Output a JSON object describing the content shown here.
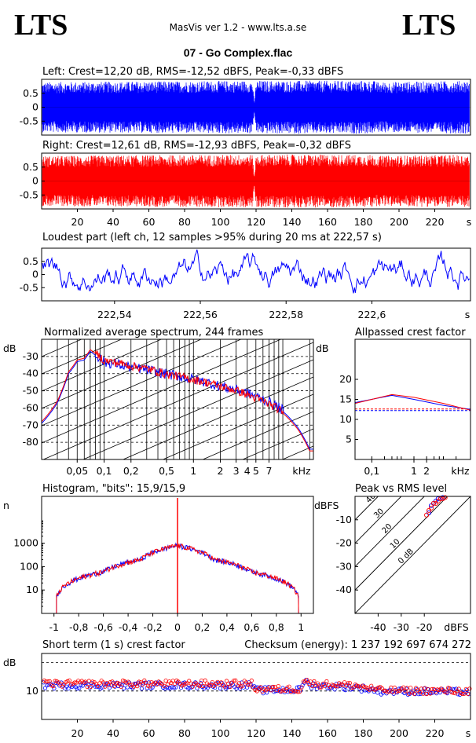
{
  "header": {
    "logo_left": "LTS",
    "logo_right": "LTS",
    "app_title": "MasVis ver 1.2 - www.lts.a.se",
    "file_name": "07 - Go Complex.flac"
  },
  "colors": {
    "left": "#0000ff",
    "right": "#ff0000",
    "axis": "#000000"
  },
  "chart_data": [
    {
      "id": "left-waveform",
      "type": "area",
      "title": "Left: Crest=12,20 dB, RMS=-12,52 dBFS, Peak=-0,33 dBFS",
      "series": [
        {
          "color": "#0000ff",
          "envelope": [
            [
              0,
              0.9
            ],
            [
              118,
              0.95
            ],
            [
              119,
              0.15
            ],
            [
              120,
              0.95
            ],
            [
              186,
              0.95
            ],
            [
              187,
              0.9
            ],
            [
              240,
              0.95
            ]
          ]
        }
      ],
      "xlim": [
        0,
        240
      ],
      "ylim": [
        -1,
        1
      ],
      "yticks": [
        "0.5",
        "0",
        "-0.5"
      ],
      "ytick_values": [
        0.5,
        0,
        -0.5
      ],
      "xticks": [],
      "xlabel": ""
    },
    {
      "id": "right-waveform",
      "type": "area",
      "title": "Right: Crest=12,61 dB, RMS=-12,93 dBFS, Peak=-0,32 dBFS",
      "series": [
        {
          "color": "#ff0000",
          "envelope": [
            [
              0,
              0.9
            ],
            [
              118,
              0.95
            ],
            [
              119,
              0.15
            ],
            [
              120,
              0.95
            ],
            [
              186,
              0.95
            ],
            [
              187,
              0.9
            ],
            [
              240,
              0.95
            ]
          ]
        }
      ],
      "xlim": [
        0,
        240
      ],
      "ylim": [
        -1,
        1
      ],
      "yticks": [
        "0.5",
        "0",
        "-0.5"
      ],
      "ytick_values": [
        0.5,
        0,
        -0.5
      ],
      "xticks": [
        "20",
        "40",
        "60",
        "80",
        "100",
        "120",
        "140",
        "160",
        "180",
        "200",
        "220"
      ],
      "xtick_values": [
        20,
        40,
        60,
        80,
        100,
        120,
        140,
        160,
        180,
        200,
        220
      ],
      "xlabel": "s"
    },
    {
      "id": "loudest-part",
      "type": "line",
      "title": "Loudest part (left  ch, 12 samples >95% during 20 ms at 222,57 s)",
      "series": [
        {
          "color": "#0000ff"
        }
      ],
      "xlim": [
        222.523,
        222.623
      ],
      "ylim": [
        -1,
        1
      ],
      "yticks": [
        "0.5",
        "0",
        "-0.5"
      ],
      "ytick_values": [
        0.5,
        0,
        -0.5
      ],
      "xticks": [
        "222,54",
        "222,56",
        "222,58",
        "222,6"
      ],
      "xtick_values": [
        222.54,
        222.56,
        222.58,
        222.6
      ],
      "xlabel": "s"
    },
    {
      "id": "average-spectrum",
      "type": "line",
      "title": "Normalized average spectrum, 244 frames",
      "ylabel": "dB",
      "xlabel": "kHz",
      "xlim": [
        0.02,
        22
      ],
      "ylim": [
        -90,
        -20
      ],
      "yticks": [
        "-30",
        "-40",
        "-50",
        "-60",
        "-70",
        "-80"
      ],
      "ytick_values": [
        -30,
        -40,
        -50,
        -60,
        -70,
        -80
      ],
      "xticks": [
        "0,05",
        "0,1",
        "0,2",
        "0,5",
        "1",
        "2",
        "3",
        "4",
        "5",
        "7"
      ],
      "xtick_values": [
        0.05,
        0.1,
        0.2,
        0.5,
        1,
        2,
        3,
        4,
        5,
        7
      ],
      "series": [
        {
          "color": "#0000ff",
          "points": [
            [
              0.02,
              -69
            ],
            [
              0.03,
              -57
            ],
            [
              0.04,
              -40
            ],
            [
              0.05,
              -33
            ],
            [
              0.06,
              -32
            ],
            [
              0.07,
              -27
            ],
            [
              0.1,
              -34
            ],
            [
              0.2,
              -37
            ],
            [
              0.5,
              -41
            ],
            [
              1,
              -44
            ],
            [
              2,
              -48
            ],
            [
              5,
              -54
            ],
            [
              10,
              -62
            ],
            [
              15,
              -72
            ],
            [
              20,
              -84
            ]
          ]
        },
        {
          "color": "#ff0000",
          "points": [
            [
              0.02,
              -68
            ],
            [
              0.03,
              -56
            ],
            [
              0.04,
              -39
            ],
            [
              0.05,
              -32
            ],
            [
              0.06,
              -31
            ],
            [
              0.07,
              -26
            ],
            [
              0.1,
              -33
            ],
            [
              0.2,
              -36
            ],
            [
              0.5,
              -41
            ],
            [
              1,
              -44
            ],
            [
              2,
              -48
            ],
            [
              5,
              -55
            ],
            [
              10,
              -63
            ],
            [
              15,
              -73
            ],
            [
              20,
              -85
            ]
          ]
        }
      ]
    },
    {
      "id": "allpassed-crest-factor",
      "type": "line",
      "title": "Allpassed crest factor",
      "ylabel": "dB",
      "xlabel": "kHz",
      "xlim": [
        0.04,
        22
      ],
      "ylim": [
        0,
        30
      ],
      "yticks": [
        "20",
        "15",
        "10",
        "5"
      ],
      "ytick_values": [
        20,
        15,
        10,
        5
      ],
      "xticks": [
        "0,1",
        "1",
        "2"
      ],
      "xtick_values": [
        0.1,
        1,
        2
      ],
      "reference_lines": [
        12.2,
        12.6
      ],
      "series": [
        {
          "color": "#0000ff",
          "points": [
            [
              0.04,
              14.2
            ],
            [
              0.3,
              16.0
            ],
            [
              1,
              15.0
            ],
            [
              5,
              13.5
            ],
            [
              22,
              12.5
            ]
          ]
        },
        {
          "color": "#ff0000",
          "points": [
            [
              0.04,
              14.0
            ],
            [
              0.3,
              16.2
            ],
            [
              1,
              15.5
            ],
            [
              5,
              14.0
            ],
            [
              22,
              12.3
            ]
          ]
        }
      ]
    },
    {
      "id": "histogram",
      "type": "line",
      "title": "Histogram, \"bits\": 15,9/15,9",
      "ylabel": "n",
      "xlim": [
        -1.1,
        1.1
      ],
      "ylim": [
        1,
        100000
      ],
      "yscale": "log",
      "yticks": [
        "1000",
        "100",
        "10"
      ],
      "ytick_values": [
        1000,
        100,
        10
      ],
      "xticks": [
        "-1",
        "-0,8",
        "-0,6",
        "-0,4",
        "-0,2",
        "0",
        "0,2",
        "0,4",
        "0,6",
        "0,8",
        "1"
      ],
      "xtick_values": [
        -1,
        -0.8,
        -0.6,
        -0.4,
        -0.2,
        0,
        0.2,
        0.4,
        0.6,
        0.8,
        1
      ],
      "series": [
        {
          "color": "#0000ff",
          "points": [
            [
              -0.98,
              5
            ],
            [
              -0.95,
              10
            ],
            [
              -0.6,
              60
            ],
            [
              -0.3,
              200
            ],
            [
              0,
              800
            ],
            [
              0.3,
              200
            ],
            [
              0.6,
              60
            ],
            [
              0.95,
              10
            ],
            [
              0.98,
              5
            ]
          ]
        },
        {
          "color": "#ff0000",
          "points": [
            [
              -0.98,
              5
            ],
            [
              -0.95,
              10
            ],
            [
              -0.6,
              60
            ],
            [
              -0.3,
              200
            ],
            [
              0,
              800
            ],
            [
              0.3,
              200
            ],
            [
              0.6,
              60
            ],
            [
              0.95,
              10
            ],
            [
              0.98,
              5
            ]
          ]
        }
      ]
    },
    {
      "id": "peak-vs-rms",
      "type": "scatter",
      "title": "Peak vs RMS level",
      "ylabel": "dBFS",
      "xlabel": "dBFS",
      "xlim": [
        -50,
        0
      ],
      "ylim": [
        -50,
        0
      ],
      "yticks": [
        "-10",
        "-20",
        "-30",
        "-40"
      ],
      "ytick_values": [
        -10,
        -20,
        -30,
        -40
      ],
      "xticks": [
        "-40",
        "-30",
        "-20"
      ],
      "xtick_values": [
        -40,
        -30,
        -20
      ],
      "diagonal_labels": [
        "40",
        "30",
        "20",
        "10",
        "0 dB"
      ],
      "diagonal_values": [
        40,
        30,
        20,
        10,
        0
      ],
      "series": [
        {
          "color": "#0000ff",
          "points": [
            [
              -18,
              -7
            ],
            [
              -17,
              -4
            ],
            [
              -16,
              -3
            ],
            [
              -15,
              -2
            ],
            [
              -14,
              -1
            ],
            [
              -13,
              -1
            ],
            [
              -12,
              -0.5
            ]
          ]
        },
        {
          "color": "#ff0000",
          "points": [
            [
              -19,
              -8
            ],
            [
              -18,
              -6
            ],
            [
              -17,
              -5
            ],
            [
              -16,
              -3
            ],
            [
              -15,
              -3
            ],
            [
              -14,
              -2
            ],
            [
              -13,
              -1
            ],
            [
              -12,
              -1
            ],
            [
              -11,
              -0.5
            ]
          ]
        }
      ]
    },
    {
      "id": "short-term-crest",
      "type": "scatter",
      "title": "Short term (1 s) crest factor",
      "checksum": "Checksum (energy):  1 237 192 697 674 272",
      "ylabel": "dB",
      "xlabel": "s",
      "xlim": [
        0,
        240
      ],
      "ylim": [
        5,
        25
      ],
      "yticks": [
        "10"
      ],
      "ytick_values": [
        10
      ],
      "reference_lines": [
        10,
        20
      ],
      "xticks": [
        "20",
        "40",
        "60",
        "80",
        "100",
        "120",
        "140",
        "160",
        "180",
        "200",
        "220"
      ],
      "xtick_values": [
        20,
        40,
        60,
        80,
        100,
        120,
        140,
        160,
        180,
        200,
        220
      ],
      "series": [
        {
          "color": "#0000ff",
          "level": [
            [
              0,
              11.5
            ],
            [
              118,
              11.5
            ],
            [
              120,
              10.2
            ],
            [
              145,
              10.3
            ],
            [
              147,
              13
            ],
            [
              150,
              11.5
            ],
            [
              175,
              11
            ],
            [
              190,
              10
            ],
            [
              240,
              9.8
            ]
          ]
        },
        {
          "color": "#ff0000",
          "level": [
            [
              0,
              12
            ],
            [
              118,
              12
            ],
            [
              120,
              10.5
            ],
            [
              145,
              10.5
            ],
            [
              147,
              13.5
            ],
            [
              150,
              12
            ],
            [
              175,
              11.5
            ],
            [
              190,
              10.2
            ],
            [
              240,
              10
            ]
          ]
        }
      ]
    }
  ]
}
